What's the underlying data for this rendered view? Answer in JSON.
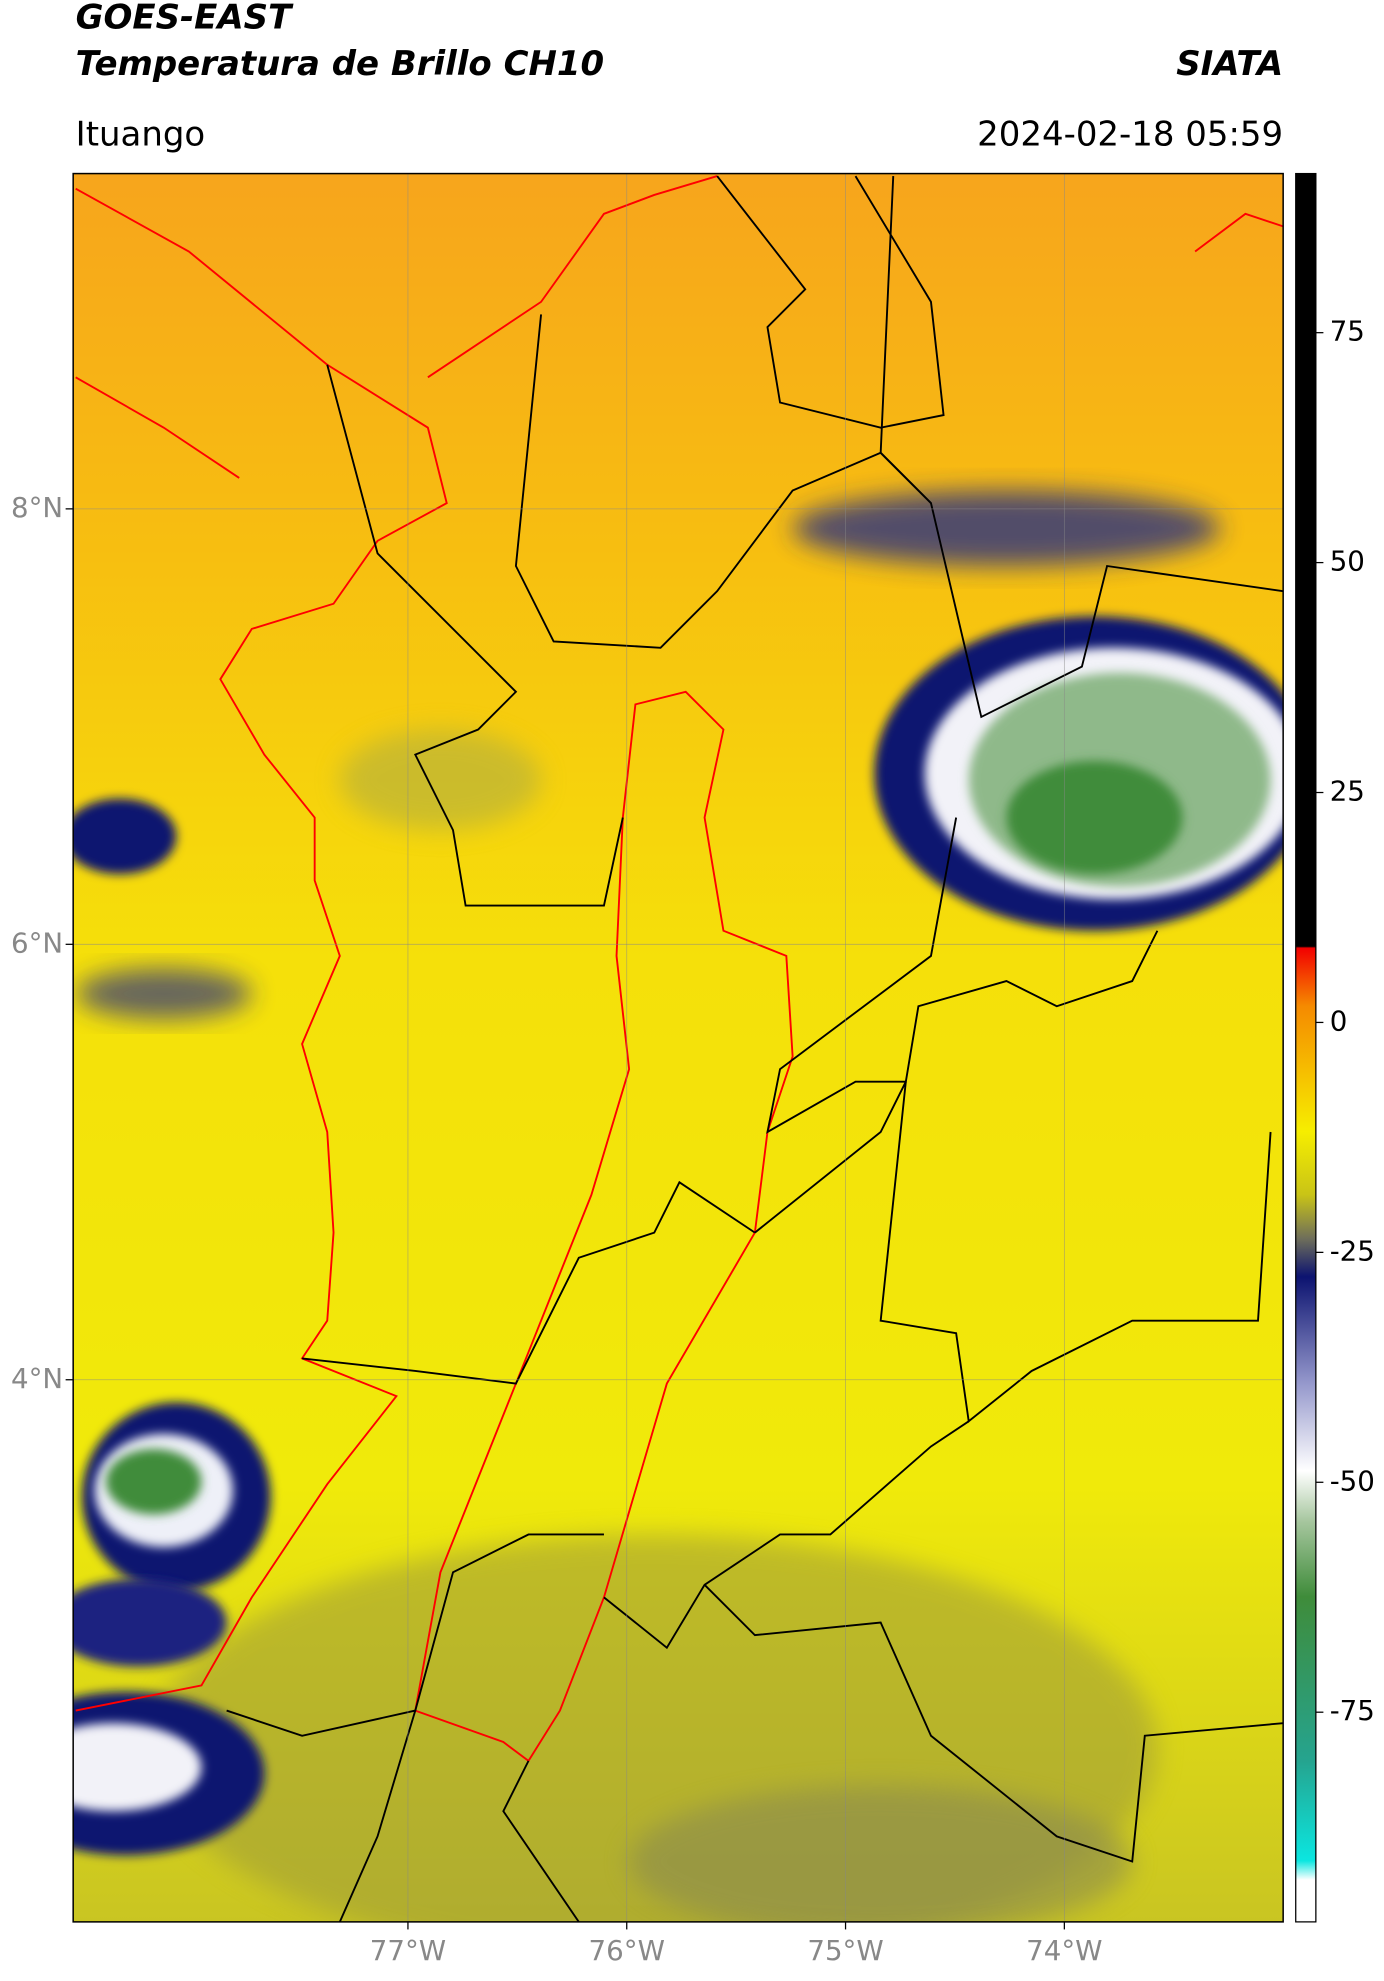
{
  "header": {
    "title": "GOES-EAST",
    "subtitle": "Temperatura de Brillo CH10",
    "source": "SIATA",
    "location": "Ituango",
    "datetime": "2024-02-18 05:59"
  },
  "map": {
    "xlim": [
      -78.53,
      -73.0
    ],
    "ylim": [
      1.51,
      9.54
    ],
    "xticks": [
      {
        "value": -77,
        "label": "77°W"
      },
      {
        "value": -76,
        "label": "76°W"
      },
      {
        "value": -75,
        "label": "75°W"
      },
      {
        "value": -74,
        "label": "74°W"
      }
    ],
    "yticks": [
      {
        "value": 8,
        "label": "8°N"
      },
      {
        "value": 6,
        "label": "6°N"
      },
      {
        "value": 4,
        "label": "4°N"
      }
    ],
    "grid": true
  },
  "colorbar": {
    "lim": [
      -97.8,
      92.3
    ],
    "ticks": [
      75,
      50,
      25,
      0,
      -25,
      -50,
      -75
    ]
  }
}
